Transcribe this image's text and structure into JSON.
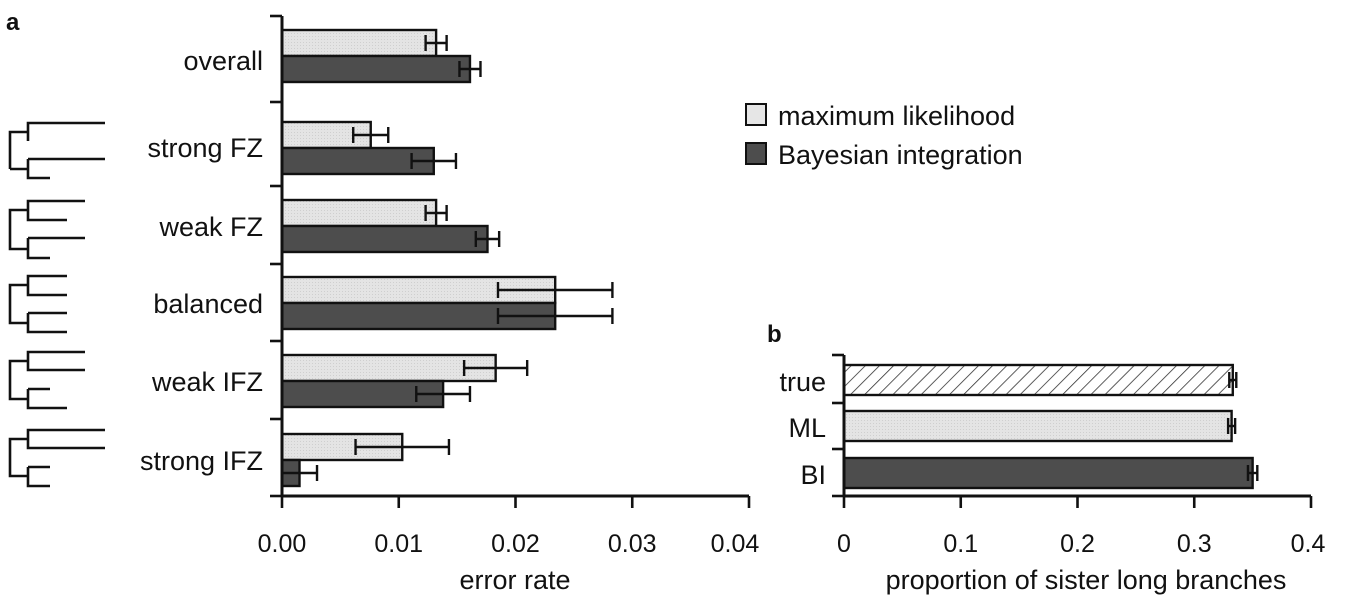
{
  "chart_data": [
    {
      "panel": "a",
      "type": "bar",
      "orientation": "horizontal",
      "categories": [
        "overall",
        "strong FZ",
        "weak FZ",
        "balanced",
        "weak IFZ",
        "strong IFZ"
      ],
      "series": [
        {
          "name": "maximum likelihood",
          "color": "#e6e6e6",
          "values": [
            0.0132,
            0.0076,
            0.0132,
            0.0234,
            0.0183,
            0.0103
          ],
          "err": [
            0.0009,
            0.0015,
            0.0009,
            0.0049,
            0.0027,
            0.004
          ]
        },
        {
          "name": "Bayesian integration",
          "color": "#4d4d4d",
          "values": [
            0.0161,
            0.013,
            0.0176,
            0.0234,
            0.0138,
            0.0015
          ],
          "err": [
            0.0009,
            0.0019,
            0.001,
            0.0049,
            0.0023,
            0.0015
          ]
        }
      ],
      "xlabel": "error rate",
      "xlim": [
        0,
        0.04
      ],
      "xticks": [
        "0.00",
        "0.01",
        "0.02",
        "0.03",
        "0.04"
      ],
      "legend_position": "top-right"
    },
    {
      "panel": "b",
      "type": "bar",
      "orientation": "horizontal",
      "categories": [
        "true",
        "ML",
        "BI"
      ],
      "values": [
        0.333,
        0.332,
        0.35
      ],
      "err": [
        0.003,
        0.003,
        0.004
      ],
      "fills": [
        "hatched",
        "#e6e6e6",
        "#4d4d4d"
      ],
      "xlabel": "proportion of sister long branches",
      "xlim": [
        0,
        0.4
      ],
      "xticks": [
        "0",
        "0.1",
        "0.2",
        "0.3",
        "0.4"
      ]
    }
  ]
}
